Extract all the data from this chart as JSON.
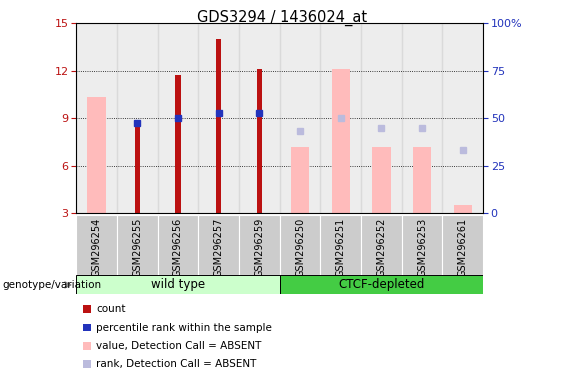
{
  "title": "GDS3294 / 1436024_at",
  "samples": [
    "GSM296254",
    "GSM296255",
    "GSM296256",
    "GSM296257",
    "GSM296259",
    "GSM296250",
    "GSM296251",
    "GSM296252",
    "GSM296253",
    "GSM296261"
  ],
  "count": [
    null,
    8.7,
    11.7,
    14.0,
    12.1,
    null,
    null,
    null,
    null,
    null
  ],
  "rank": [
    null,
    8.7,
    9.0,
    9.3,
    9.3,
    null,
    null,
    null,
    null,
    null
  ],
  "value_absent": [
    10.3,
    null,
    null,
    null,
    null,
    7.2,
    12.1,
    7.2,
    7.2,
    3.5
  ],
  "rank_absent": [
    null,
    null,
    null,
    null,
    null,
    8.2,
    9.0,
    8.4,
    8.4,
    7.0
  ],
  "ylim_left": [
    3,
    15
  ],
  "ylim_right": [
    0,
    100
  ],
  "yticks_left": [
    3,
    6,
    9,
    12,
    15
  ],
  "yticks_right": [
    0,
    25,
    50,
    75,
    100
  ],
  "ytick_right_labels": [
    "0",
    "25",
    "50",
    "75",
    "100%"
  ],
  "count_color": "#bb1111",
  "rank_color": "#2233bb",
  "value_absent_color": "#ffbbbb",
  "rank_absent_color": "#bbbbdd",
  "wt_color_light": "#ccffcc",
  "wt_color": "#aaddaa",
  "ctcf_color": "#44cc44",
  "sample_box_color": "#cccccc",
  "grid_color": "#444444",
  "legend_items": [
    {
      "label": "count",
      "color": "#bb1111"
    },
    {
      "label": "percentile rank within the sample",
      "color": "#2233bb"
    },
    {
      "label": "value, Detection Call = ABSENT",
      "color": "#ffbbbb"
    },
    {
      "label": "rank, Detection Call = ABSENT",
      "color": "#bbbbdd"
    }
  ],
  "wt_group": [
    0,
    4
  ],
  "ctcf_group": [
    5,
    9
  ]
}
